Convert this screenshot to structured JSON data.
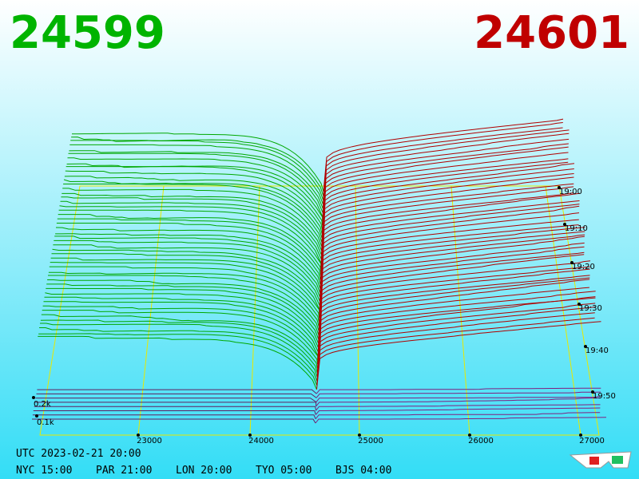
{
  "header": {
    "bid": "24599",
    "ask": "24601"
  },
  "price_axis": {
    "ticks": [
      "23000",
      "24000",
      "25000",
      "26000",
      "27000"
    ]
  },
  "depth_axis": {
    "ticks": [
      "0.2k",
      "0.1k"
    ]
  },
  "time_axis": {
    "ticks": [
      "19:00",
      "19:10",
      "19:20",
      "19:30",
      "19:40",
      "19:50"
    ]
  },
  "footer": {
    "utc": "UTC 2023-02-21 20:00",
    "zones": [
      "NYC 15:00",
      "PAR 21:00",
      "LON 20:00",
      "TYO 05:00",
      "BJS 04:00"
    ]
  }
}
